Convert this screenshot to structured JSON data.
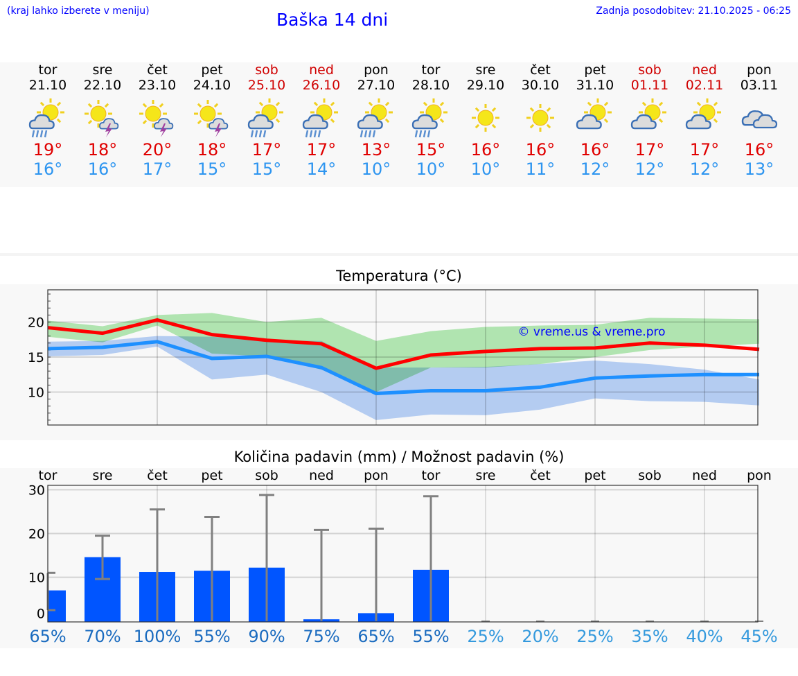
{
  "header": {
    "hint": "(kraj lahko izberete v meniju)",
    "title": "Baška 14 dni",
    "updated": "Zadnja posodobitev: 21.10.2025 - 06:25"
  },
  "colors": {
    "max": "#ff0000",
    "min": "#1e90ff",
    "max_band": "#a8e8a8",
    "min_band": "#a8c4f0",
    "bar": "#0055ff",
    "err": "#808080",
    "weekend": "#d00000"
  },
  "days": [
    {
      "name": "tor",
      "date": "21.10",
      "icon": "sun-cloud-rain-icon",
      "max": "19°",
      "min": "16°",
      "weekend": false
    },
    {
      "name": "sre",
      "date": "22.10",
      "icon": "sun-thunderstorm-icon",
      "max": "18°",
      "min": "16°",
      "weekend": false
    },
    {
      "name": "čet",
      "date": "23.10",
      "icon": "sun-thunderstorm-icon",
      "max": "20°",
      "min": "17°",
      "weekend": false
    },
    {
      "name": "pet",
      "date": "24.10",
      "icon": "sun-thunderstorm-icon",
      "max": "18°",
      "min": "15°",
      "weekend": false
    },
    {
      "name": "sob",
      "date": "25.10",
      "icon": "sun-cloud-rain-icon",
      "max": "17°",
      "min": "15°",
      "weekend": true
    },
    {
      "name": "ned",
      "date": "26.10",
      "icon": "sun-cloud-rain-icon",
      "max": "17°",
      "min": "14°",
      "weekend": true
    },
    {
      "name": "pon",
      "date": "27.10",
      "icon": "sun-cloud-rain-icon",
      "max": "13°",
      "min": "10°",
      "weekend": false
    },
    {
      "name": "tor",
      "date": "28.10",
      "icon": "sun-cloud-rain-icon",
      "max": "15°",
      "min": "10°",
      "weekend": false
    },
    {
      "name": "sre",
      "date": "29.10",
      "icon": "sun-icon",
      "max": "16°",
      "min": "10°",
      "weekend": false
    },
    {
      "name": "čet",
      "date": "30.10",
      "icon": "sun-icon",
      "max": "16°",
      "min": "11°",
      "weekend": false
    },
    {
      "name": "pet",
      "date": "31.10",
      "icon": "sun-cloud-icon",
      "max": "16°",
      "min": "12°",
      "weekend": false
    },
    {
      "name": "sob",
      "date": "01.11",
      "icon": "sun-cloud-icon",
      "max": "17°",
      "min": "12°",
      "weekend": true
    },
    {
      "name": "ned",
      "date": "02.11",
      "icon": "sun-cloud-icon",
      "max": "17°",
      "min": "12°",
      "weekend": true
    },
    {
      "name": "pon",
      "date": "03.11",
      "icon": "cloudy-icon",
      "max": "16°",
      "min": "13°",
      "weekend": false
    }
  ],
  "chart_data": [
    {
      "type": "line",
      "title": "Temperatura (°C)",
      "watermark": "© vreme.us & vreme.pro",
      "x": [
        "21.10",
        "22.10",
        "23.10",
        "24.10",
        "25.10",
        "26.10",
        "27.10",
        "28.10",
        "29.10",
        "30.10",
        "31.10",
        "01.11",
        "02.11",
        "03.11"
      ],
      "ylim": [
        5.3,
        24.6
      ],
      "yticks": [
        10,
        15,
        20
      ],
      "grid": true,
      "series": [
        {
          "name": "max",
          "values": [
            19.2,
            18.4,
            20.3,
            18.2,
            17.4,
            16.9,
            13.4,
            15.3,
            15.8,
            16.2,
            16.3,
            17.0,
            16.7,
            16.1
          ],
          "band_high": [
            20.2,
            19.4,
            21.0,
            21.3,
            20.0,
            20.6,
            17.3,
            18.7,
            19.3,
            19.5,
            19.6,
            20.6,
            20.5,
            20.4
          ],
          "band_low": [
            17.9,
            17.1,
            19.5,
            15.5,
            15.1,
            13.2,
            10.0,
            13.5,
            13.5,
            14.0,
            15.0,
            16.0,
            16.5,
            16.9
          ]
        },
        {
          "name": "min",
          "values": [
            16.2,
            16.4,
            17.2,
            14.8,
            15.1,
            13.5,
            9.8,
            10.2,
            10.2,
            10.7,
            12.0,
            12.3,
            12.5,
            12.5
          ],
          "band_high": [
            17.2,
            17.3,
            18.0,
            17.9,
            17.4,
            17.3,
            13.5,
            13.5,
            13.6,
            14.0,
            14.5,
            14.0,
            13.2,
            11.8
          ],
          "band_low": [
            15.1,
            15.3,
            16.5,
            11.8,
            12.5,
            10.0,
            6.0,
            6.8,
            6.7,
            7.5,
            9.1,
            8.7,
            8.6,
            8.1
          ]
        }
      ]
    },
    {
      "type": "bar",
      "title": "Količina padavin (mm) / Možnost padavin (%)",
      "categories": [
        "tor",
        "sre",
        "čet",
        "pet",
        "sob",
        "ned",
        "pon",
        "tor",
        "sre",
        "čet",
        "pet",
        "sob",
        "ned",
        "pon"
      ],
      "values": [
        7.0,
        14.6,
        11.2,
        11.5,
        12.2,
        0.4,
        1.8,
        11.7,
        0,
        0,
        0,
        0,
        0,
        0
      ],
      "err_low": [
        2.5,
        9.6,
        0,
        0,
        0,
        0,
        0,
        0,
        0,
        0,
        0,
        0,
        0,
        0
      ],
      "err_high": [
        11.0,
        19.5,
        25.5,
        23.8,
        28.8,
        20.8,
        21.1,
        28.5,
        0,
        0,
        0,
        0,
        0,
        0
      ],
      "probability": [
        "65%",
        "70%",
        "100%",
        "55%",
        "90%",
        "75%",
        "65%",
        "55%",
        "25%",
        "20%",
        "25%",
        "35%",
        "40%",
        "45%"
      ],
      "ylim": [
        -0.2,
        31
      ],
      "yticks": [
        0,
        10,
        20,
        30
      ],
      "grid": true
    }
  ]
}
